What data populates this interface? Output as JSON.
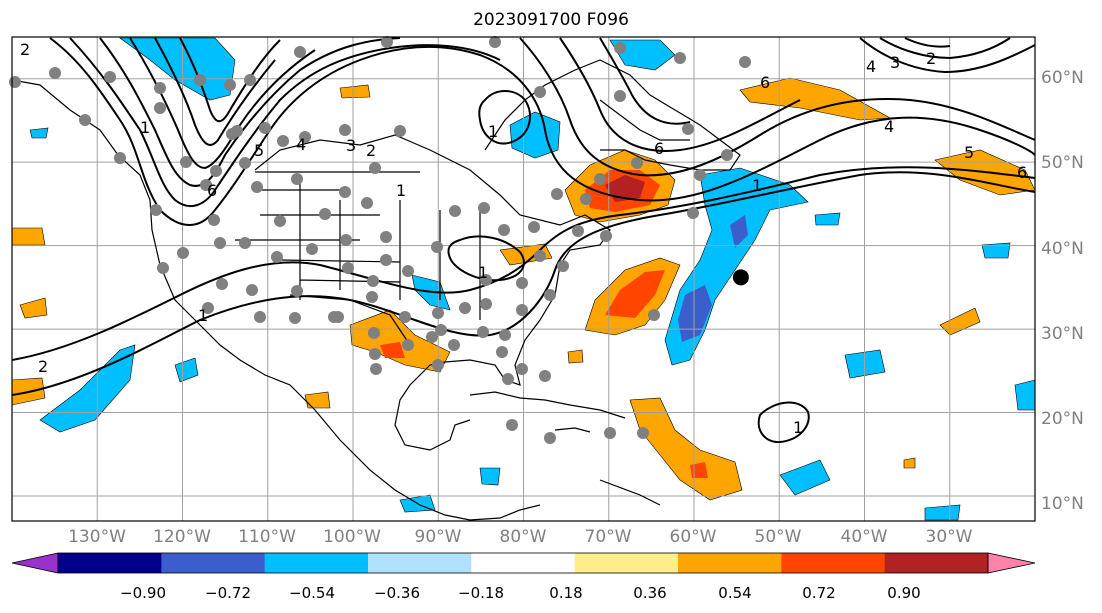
{
  "title": "2023091700 F096",
  "map": {
    "projection": "equirectangular",
    "extent": {
      "lon": [
        -140,
        -20
      ],
      "lat": [
        7,
        65
      ]
    },
    "lat_labels": [
      "60°N",
      "50°N",
      "40°N",
      "30°N",
      "20°N",
      "10°N"
    ],
    "lat_values": [
      60,
      50,
      40,
      30,
      20,
      10
    ],
    "lon_labels": [
      "130°W",
      "120°W",
      "110°W",
      "100°W",
      "90°W",
      "80°W",
      "70°W",
      "60°W",
      "50°W",
      "40°W",
      "30°W"
    ],
    "lon_values": [
      -130,
      -120,
      -110,
      -100,
      -90,
      -80,
      -70,
      -60,
      -50,
      -40,
      -30
    ],
    "contour_labels": [
      "2",
      "1",
      "6",
      "5",
      "4",
      "3",
      "2",
      "1",
      "1",
      "6",
      "1",
      "1",
      "2",
      "1",
      "6",
      "4",
      "3",
      "2",
      "4",
      "5",
      "6",
      "1"
    ],
    "storm_marker": {
      "lon": -54.5,
      "lat": 36.2
    }
  },
  "colorbar": {
    "tick_labels": [
      "−0.90",
      "−0.72",
      "−0.54",
      "−0.36",
      "−0.18",
      "0.18",
      "0.36",
      "0.54",
      "0.72",
      "0.90"
    ],
    "colors": [
      "#9932cc",
      "#00008b",
      "#3a5fcd",
      "#00bfff",
      "#b0e2ff",
      "#ffffff",
      "#ffec8b",
      "#ffa500",
      "#ff4500",
      "#b22222",
      "#ff82ab"
    ]
  }
}
